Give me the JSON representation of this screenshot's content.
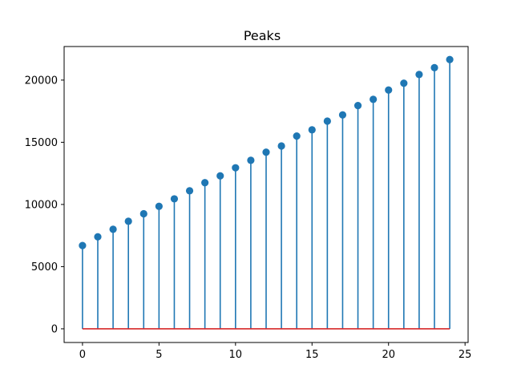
{
  "chart_data": {
    "type": "stem",
    "title": "Peaks",
    "xlabel": "",
    "ylabel": "",
    "x": [
      0,
      1,
      2,
      3,
      4,
      5,
      6,
      7,
      8,
      9,
      10,
      11,
      12,
      13,
      14,
      15,
      16,
      17,
      18,
      19,
      20,
      21,
      22,
      23,
      24
    ],
    "values": [
      6700,
      7400,
      8000,
      8650,
      9250,
      9850,
      10450,
      11100,
      11750,
      12300,
      12950,
      13550,
      14200,
      14700,
      15500,
      16000,
      16700,
      17200,
      17950,
      18450,
      19200,
      19750,
      20450,
      21000,
      21650
    ],
    "xlim": [
      -1.2,
      25.2
    ],
    "ylim": [
      -1100,
      22700
    ],
    "xticks": [
      0,
      5,
      10,
      15,
      20,
      25
    ],
    "yticks": [
      0,
      5000,
      10000,
      15000,
      20000
    ],
    "xtick_labels": [
      "0",
      "5",
      "10",
      "15",
      "20",
      "25"
    ],
    "ytick_labels": [
      "0",
      "5000",
      "10000",
      "15000",
      "20000"
    ],
    "grid": false,
    "colors": {
      "stem": "#1f77b4",
      "marker": "#1f77b4",
      "baseline": "#d62728",
      "axes": "#000000"
    }
  }
}
